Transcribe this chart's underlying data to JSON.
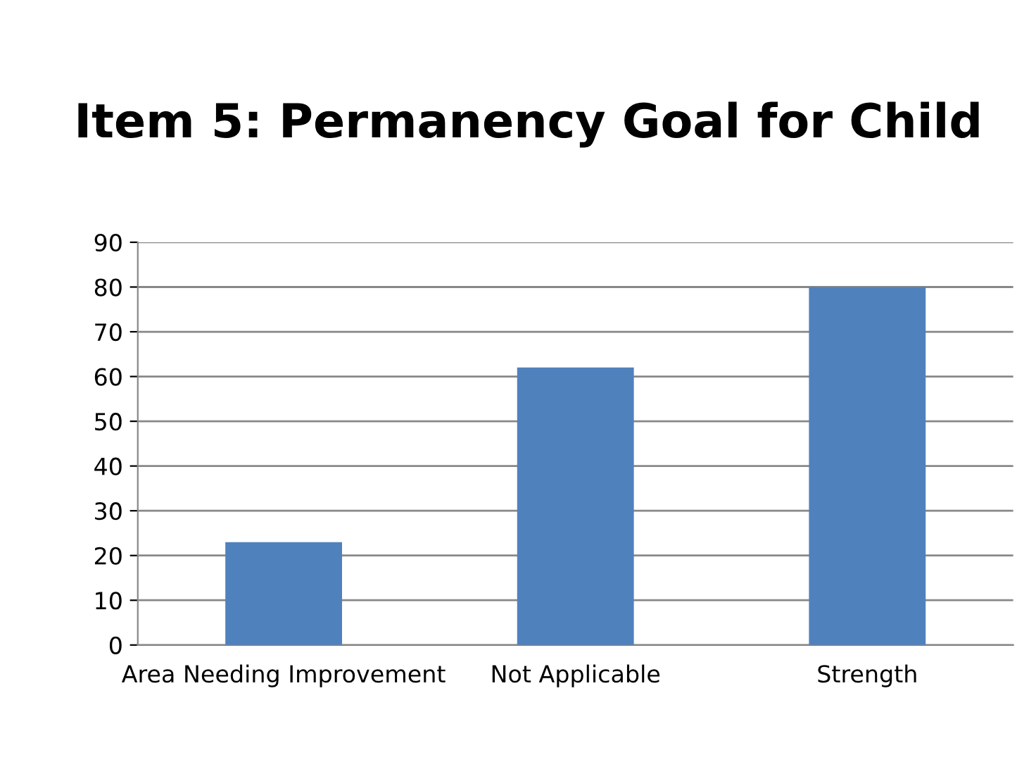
{
  "chart_data": {
    "type": "bar",
    "title": "Item 5: Permanency Goal for Child",
    "categories": [
      "Area Needing Improvement",
      "Not Applicable",
      "Strength"
    ],
    "values": [
      23,
      62,
      80
    ],
    "color": "#4f81bd",
    "ylim": [
      0,
      90
    ],
    "yticks": [
      0,
      10,
      20,
      30,
      40,
      50,
      60,
      70,
      80,
      90
    ],
    "grid": "y"
  }
}
